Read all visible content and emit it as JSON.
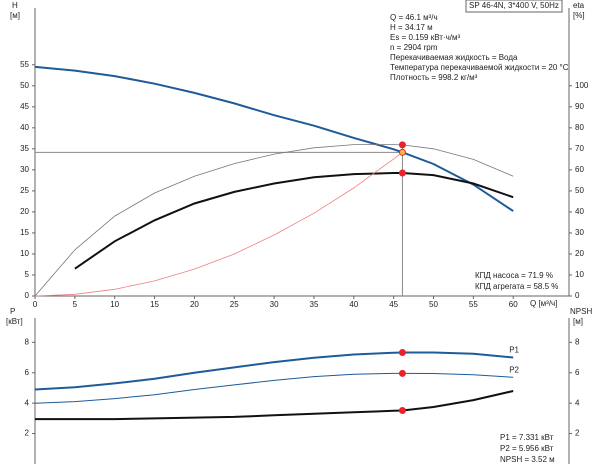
{
  "chart_data": [
    {
      "type": "line",
      "title": "SP 46-4N, 3*400 V, 50Hz",
      "info": [
        "Q = 46.1 м³/ч",
        "H = 34.17 м",
        "Es = 0.159 кВт·ч/м³",
        "n = 2904 rpm",
        "Перекачиваемая жидкость = Вода",
        "Температура перекачиваемой жидкости = 20 °C",
        "Плотность = 998.2 кг/м³"
      ],
      "notes": [
        "КПД насоса = 71.9 %",
        "КПД агрегата = 58.5 %"
      ],
      "xlabel": "Q [м³/ч]",
      "ylabel": "H",
      "yunit": "[м]",
      "y2label": "eta",
      "y2unit": "[%]",
      "operating_x": 46.1,
      "marker_color": "#e8242a",
      "x": [
        0,
        5,
        10,
        15,
        20,
        25,
        30,
        35,
        40,
        45,
        46.1,
        50,
        55,
        60
      ],
      "xlim": [
        0,
        67
      ],
      "xticks": [
        0,
        5,
        10,
        15,
        20,
        25,
        30,
        35,
        40,
        45,
        50,
        55,
        60
      ],
      "ylim": [
        0,
        68.5
      ],
      "yticks": [
        0,
        5,
        10,
        15,
        20,
        25,
        30,
        35,
        40,
        45,
        50,
        55
      ],
      "y2lim": [
        0,
        137
      ],
      "y2ticks": [
        0,
        10,
        20,
        30,
        40,
        50,
        60,
        70,
        80,
        90,
        100
      ],
      "series": [
        {
          "color": "#1f5b99",
          "width": 2,
          "values": [
            54.5,
            53.6,
            52.3,
            50.5,
            48.3,
            45.8,
            43.0,
            40.5,
            37.6,
            34.9,
            34.17,
            31.4,
            26.5,
            20.2
          ],
          "marker_fill": "#f5c242"
        },
        {
          "color": "#777777",
          "width": 0.8,
          "axis": "y2",
          "values": [
            0,
            22,
            38,
            49,
            57,
            63,
            67.5,
            70.5,
            72,
            72,
            71.9,
            70,
            65,
            57
          ]
        },
        {
          "color": "#111111",
          "width": 2,
          "axis": "y2",
          "values": [
            null,
            13,
            26,
            36,
            44,
            49.5,
            53.5,
            56.5,
            58,
            58.5,
            58.5,
            57.5,
            53.5,
            47
          ]
        },
        {
          "color": "#f08080",
          "width": 0.8,
          "values": [
            0,
            0.4,
            1.6,
            3.6,
            6.4,
            10,
            14.5,
            19.7,
            25.7,
            32.6,
            34.17,
            null,
            null,
            null
          ],
          "no_marker": true
        }
      ]
    },
    {
      "type": "line",
      "ylabel": "P",
      "yunit": "[кВт]",
      "y2label": "NPSH",
      "y2unit": "[м]",
      "readouts": [
        "P1 = 7.331 кВт",
        "P2 = 5.956 кВт",
        "NPSH = 3.52 м"
      ],
      "operating_x": 46.1,
      "marker_color": "#e8242a",
      "x": [
        0,
        5,
        10,
        15,
        20,
        25,
        30,
        35,
        40,
        45,
        46.1,
        50,
        55,
        60
      ],
      "xlim": [
        0,
        67
      ],
      "ylim": [
        0,
        9.6
      ],
      "yticks": [
        2,
        4,
        6,
        8
      ],
      "y2lim": [
        0,
        9.6
      ],
      "y2ticks": [
        2,
        4,
        6,
        8
      ],
      "series": [
        {
          "name": "P1",
          "color": "#1f5b99",
          "width": 2,
          "values": [
            4.9,
            5.05,
            5.3,
            5.6,
            6.0,
            6.35,
            6.7,
            6.98,
            7.2,
            7.32,
            7.331,
            7.33,
            7.25,
            7.0
          ]
        },
        {
          "name": "P2",
          "color": "#1f5b99",
          "width": 1,
          "values": [
            4.0,
            4.1,
            4.3,
            4.55,
            4.9,
            5.2,
            5.5,
            5.75,
            5.9,
            5.955,
            5.956,
            5.95,
            5.87,
            5.7
          ]
        },
        {
          "color": "#111111",
          "width": 2,
          "axis": "y2",
          "values": [
            2.95,
            2.95,
            2.95,
            3.0,
            3.05,
            3.1,
            3.2,
            3.3,
            3.4,
            3.5,
            3.52,
            3.75,
            4.2,
            4.8
          ]
        }
      ]
    }
  ]
}
